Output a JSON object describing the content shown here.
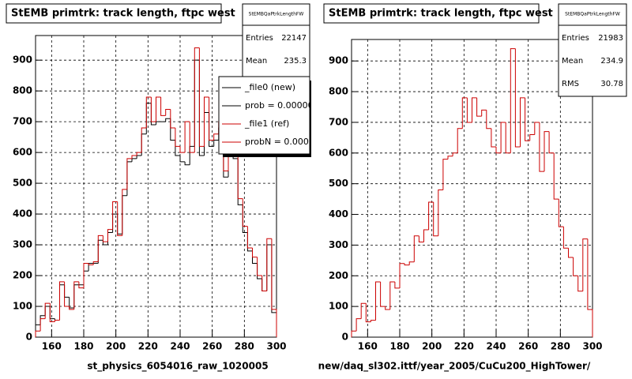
{
  "chart_data": [
    {
      "type": "histogram",
      "title": "StEMB primtrk: track length, ftpc west",
      "xlabel": "st_physics_6054016_raw_1020005",
      "bins": [
        150,
        153,
        156,
        159,
        162,
        165,
        168,
        171,
        174,
        177,
        180,
        183,
        186,
        189,
        192,
        195,
        198,
        201,
        204,
        207,
        210,
        213,
        216,
        219,
        222,
        225,
        228,
        231,
        234,
        237,
        240,
        243,
        246,
        249,
        252,
        255,
        258,
        261,
        264,
        267,
        270,
        273,
        276,
        279,
        282,
        285,
        288,
        291,
        294,
        297,
        300
      ],
      "series": [
        {
          "name": "_file0 (new)",
          "color": "#000000",
          "values": [
            40,
            70,
            100,
            60,
            55,
            170,
            130,
            95,
            170,
            170,
            215,
            240,
            240,
            315,
            300,
            340,
            400,
            335,
            460,
            570,
            580,
            590,
            660,
            760,
            690,
            700,
            700,
            710,
            640,
            590,
            570,
            560,
            620,
            900,
            590,
            730,
            620,
            640,
            680,
            520,
            650,
            580,
            430,
            340,
            280,
            240,
            190,
            150,
            300,
            80
          ]
        },
        {
          "name": "_file1 (ref)",
          "color": "#cc0000",
          "values": [
            20,
            60,
            110,
            50,
            55,
            180,
            100,
            90,
            180,
            160,
            240,
            235,
            245,
            330,
            310,
            350,
            440,
            330,
            480,
            580,
            590,
            600,
            680,
            780,
            700,
            780,
            720,
            740,
            680,
            620,
            600,
            700,
            600,
            940,
            620,
            780,
            640,
            660,
            700,
            540,
            670,
            600,
            450,
            360,
            290,
            260,
            200,
            150,
            320,
            90
          ]
        }
      ],
      "legend_notes": [
        "prob = 0.000000",
        "probN = 0.00000"
      ],
      "stats": {
        "name": "StEMBQaPtrkLengthFW",
        "rows": [
          [
            "Entries",
            "22147"
          ],
          [
            "Mean",
            "235.3"
          ]
        ]
      },
      "xlim": [
        150,
        300
      ],
      "ylim": [
        0,
        980
      ],
      "xticks": [
        160,
        180,
        200,
        220,
        240,
        260,
        280,
        300
      ],
      "yticks": [
        0,
        100,
        200,
        300,
        400,
        500,
        600,
        700,
        800,
        900
      ],
      "grid": true
    },
    {
      "type": "histogram",
      "title": "StEMB primtrk: track length, ftpc west",
      "xlabel": "new/daq_sl302.ittf/year_2005/CuCu200_HighTower/",
      "bins": [
        150,
        153,
        156,
        159,
        162,
        165,
        168,
        171,
        174,
        177,
        180,
        183,
        186,
        189,
        192,
        195,
        198,
        201,
        204,
        207,
        210,
        213,
        216,
        219,
        222,
        225,
        228,
        231,
        234,
        237,
        240,
        243,
        246,
        249,
        252,
        255,
        258,
        261,
        264,
        267,
        270,
        273,
        276,
        279,
        282,
        285,
        288,
        291,
        294,
        297,
        300
      ],
      "series": [
        {
          "color": "#cc0000",
          "values": [
            20,
            60,
            110,
            50,
            55,
            180,
            100,
            90,
            180,
            160,
            240,
            235,
            245,
            330,
            310,
            350,
            440,
            330,
            480,
            580,
            590,
            600,
            680,
            780,
            700,
            780,
            720,
            740,
            680,
            620,
            600,
            700,
            600,
            940,
            620,
            780,
            640,
            660,
            700,
            540,
            670,
            600,
            450,
            360,
            290,
            260,
            200,
            150,
            320,
            90
          ]
        }
      ],
      "stats": {
        "name": "StEMBQaPtrkLengthFW",
        "rows": [
          [
            "Entries",
            "21983"
          ],
          [
            "Mean",
            "234.9"
          ],
          [
            "RMS",
            "30.78"
          ]
        ]
      },
      "xlim": [
        150,
        300
      ],
      "ylim": [
        0,
        970
      ],
      "xticks": [
        160,
        180,
        200,
        220,
        240,
        260,
        280,
        300
      ],
      "yticks": [
        0,
        100,
        200,
        300,
        400,
        500,
        600,
        700,
        800,
        900
      ],
      "grid": true
    }
  ]
}
